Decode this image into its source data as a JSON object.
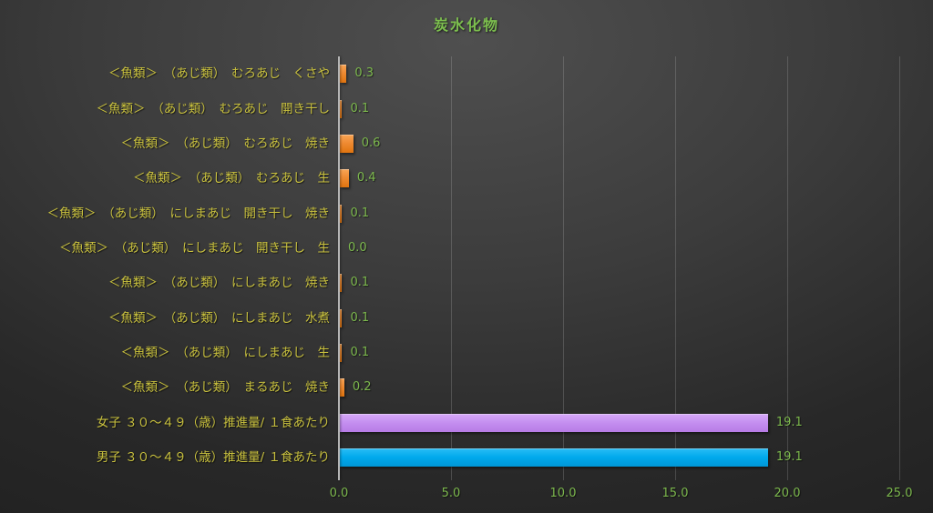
{
  "chart_data": {
    "type": "bar",
    "orientation": "horizontal",
    "title": "炭水化物",
    "xlabel": "",
    "ylabel": "",
    "xlim": [
      0,
      25
    ],
    "x_ticks": [
      "0.0",
      "5.0",
      "10.0",
      "15.0",
      "20.0",
      "25.0"
    ],
    "grid": true,
    "legend": "none",
    "categories": [
      "＜魚類＞　（あじ類）　むろあじ　くさや",
      "＜魚類＞　（あじ類）　むろあじ　開き干し",
      "＜魚類＞　（あじ類）　むろあじ　焼き",
      "＜魚類＞　（あじ類）　むろあじ　生",
      "＜魚類＞　（あじ類）　にしまあじ　開き干し　焼き",
      "＜魚類＞　（あじ類）　にしまあじ　開き干し　生",
      "＜魚類＞　（あじ類）　にしまあじ　焼き",
      "＜魚類＞　（あじ類）　にしまあじ　水煮",
      "＜魚類＞　（あじ類）　にしまあじ　生",
      "＜魚類＞　（あじ類）　まるあじ　焼き",
      "女子 ３０～４９（歳）推進量/ １食あたり",
      "男子 ３０～４９（歳）推進量/ １食あたり"
    ],
    "values": [
      0.3,
      0.1,
      0.6,
      0.4,
      0.1,
      0.0,
      0.1,
      0.1,
      0.1,
      0.2,
      19.1,
      19.1
    ],
    "value_labels": [
      "0.3",
      "0.1",
      "0.6",
      "0.4",
      "0.1",
      "0.0",
      "0.1",
      "0.1",
      "0.1",
      "0.2",
      "19.1",
      "19.1"
    ],
    "bar_color_keys": [
      "orange",
      "orange",
      "orange",
      "orange",
      "orange",
      "orange",
      "orange",
      "orange",
      "orange",
      "orange",
      "purple",
      "blue"
    ],
    "colors": {
      "orange": "#ED7D31",
      "purple": "#C48EF0",
      "blue": "#00AEEF",
      "title_text": "#7CBE4E",
      "category_text": "#C9C13E",
      "value_text": "#7CB84D",
      "axis_line": "#B5B5B5",
      "background_center": "#4F4F4F",
      "background_edge": "#222222"
    }
  }
}
